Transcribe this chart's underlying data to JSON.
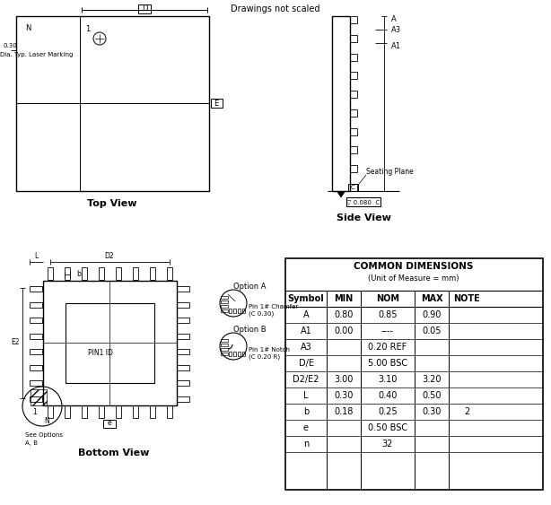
{
  "title": "Drawings not scaled",
  "top_view_label": "Top View",
  "side_view_label": "Side View",
  "bottom_view_label": "Bottom View",
  "table_title": "COMMON DIMENSIONS",
  "table_subtitle": "(Unit of Measure = mm)",
  "table_headers": [
    "Symbol",
    "MIN",
    "NOM",
    "MAX",
    "NOTE"
  ],
  "table_rows": [
    [
      "A",
      "0.80",
      "0.85",
      "0.90",
      ""
    ],
    [
      "A1",
      "0.00",
      "----",
      "0.05",
      ""
    ],
    [
      "A3",
      "",
      "0.20 REF",
      "",
      ""
    ],
    [
      "D/E",
      "",
      "5.00 BSC",
      "",
      ""
    ],
    [
      "D2/E2",
      "3.00",
      "3.10",
      "3.20",
      ""
    ],
    [
      "L",
      "0.30",
      "0.40",
      "0.50",
      ""
    ],
    [
      "b",
      "0.18",
      "0.25",
      "0.30",
      "2"
    ],
    [
      "e",
      "",
      "0.50 BSC",
      "",
      ""
    ],
    [
      "n",
      "",
      "32",
      "",
      ""
    ]
  ],
  "bg_color": "#ffffff",
  "lc": "#000000"
}
